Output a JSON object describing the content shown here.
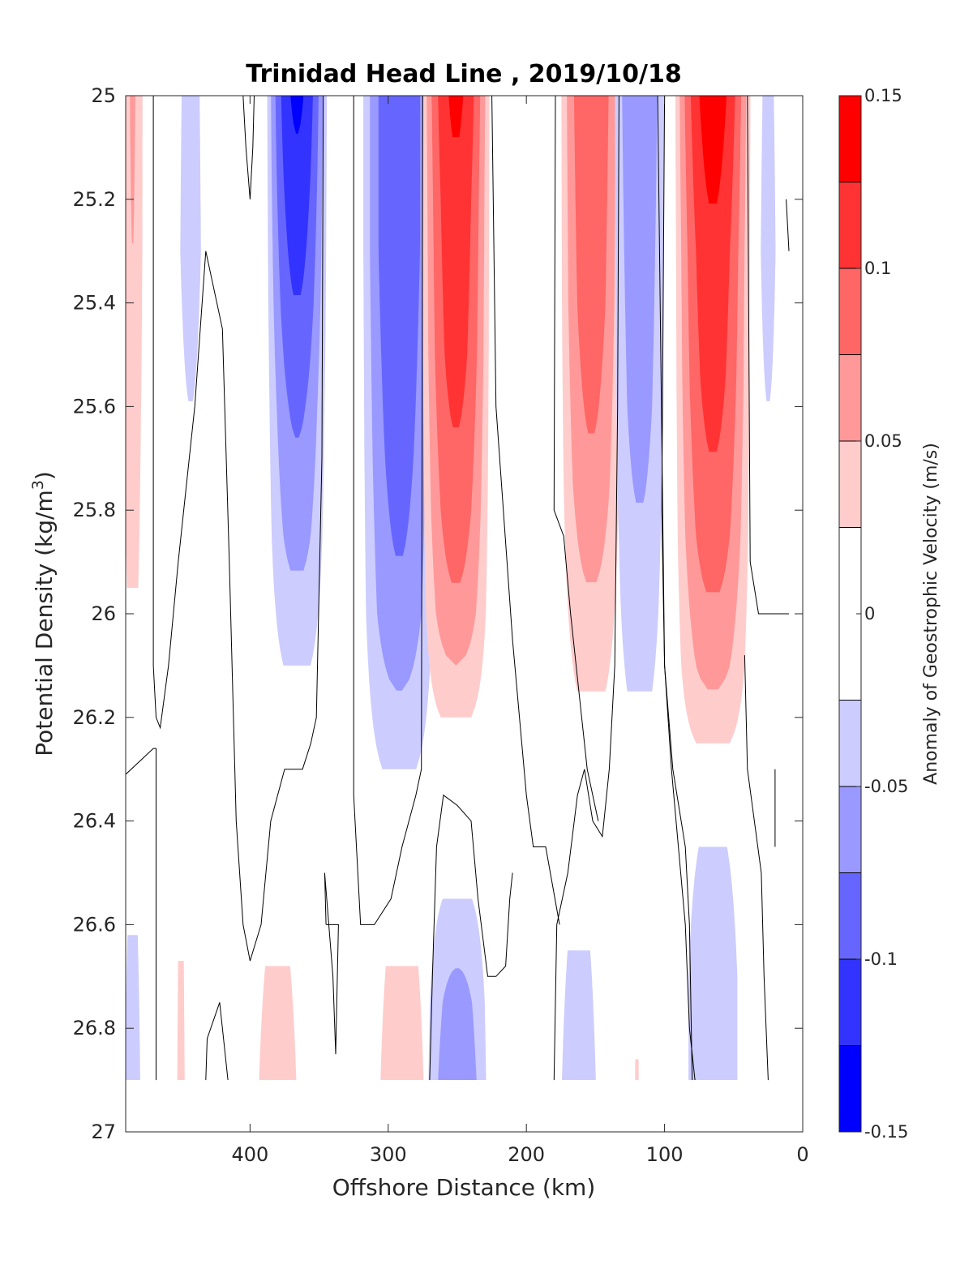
{
  "chart_data": {
    "type": "contour",
    "title": "Trinidad Head Line , 2019/10/18",
    "xlabel": "Offshore Distance (km)",
    "ylabel_main": "Potential Density (kg/m",
    "ylabel_sup": "3",
    "ylabel_close": ")",
    "colorbar_label": "Anomaly of Geostrophic Velocity (m/s)",
    "xlim": [
      490,
      0
    ],
    "ylim": [
      25,
      27
    ],
    "x_ticks": [
      400,
      300,
      200,
      100,
      0
    ],
    "x_tick_labels": [
      "400",
      "300",
      "200",
      "100",
      "0"
    ],
    "y_ticks": [
      25,
      25.2,
      25.4,
      25.6,
      25.8,
      26,
      26.2,
      26.4,
      26.6,
      26.8,
      27
    ],
    "y_tick_labels": [
      "25",
      "25.2",
      "25.4",
      "25.6",
      "25.8",
      "26",
      "26.2",
      "26.4",
      "26.6",
      "26.8",
      "27"
    ],
    "data_bottom_density": 26.9,
    "colorbar": {
      "range": [
        -0.15,
        0.15
      ],
      "levels": [
        -0.15,
        -0.125,
        -0.1,
        -0.075,
        -0.05,
        -0.025,
        0.025,
        0.05,
        0.075,
        0.1,
        0.125,
        0.15
      ],
      "colors": [
        "#0000ff",
        "#3333ff",
        "#6666ff",
        "#9999ff",
        "#ccccff",
        "#ffffff",
        "#ffcccc",
        "#ff9999",
        "#ff6666",
        "#ff3333",
        "#ff0000"
      ],
      "tick_values": [
        0.15,
        0.1,
        0.05,
        0,
        -0.05,
        -0.1,
        -0.15
      ],
      "tick_labels": [
        "0.15",
        "0.1",
        "0.05",
        "0",
        "-0.05",
        "-0.1",
        "-0.15"
      ]
    },
    "features": [
      {
        "name": "offshore-red-edge",
        "sign": "positive",
        "x_center": 485,
        "half_width": 10,
        "rows": [
          [
            25.0,
            0.052
          ],
          [
            25.3,
            0.05
          ],
          [
            25.6,
            0.04
          ],
          [
            25.95,
            0.03
          ]
        ]
      },
      {
        "name": "offshore-blue-upper",
        "sign": "negative",
        "x_center": 443,
        "half_width": 16,
        "rows": [
          [
            25.0,
            -0.03
          ],
          [
            25.3,
            -0.032
          ],
          [
            25.6,
            -0.025
          ]
        ]
      },
      {
        "name": "jet-blue-370",
        "sign": "negative",
        "x_center": 366,
        "half_width": 24,
        "rows": [
          [
            25.0,
            -0.13
          ],
          [
            25.15,
            -0.12
          ],
          [
            25.4,
            -0.1
          ],
          [
            25.6,
            -0.08
          ],
          [
            25.85,
            -0.06
          ],
          [
            26.1,
            -0.03
          ]
        ]
      },
      {
        "name": "jet-blue-290",
        "sign": "negative",
        "x_center": 292,
        "half_width": 30,
        "rows": [
          [
            25.0,
            -0.1
          ],
          [
            25.3,
            -0.1
          ],
          [
            25.7,
            -0.085
          ],
          [
            26.0,
            -0.07
          ],
          [
            26.3,
            -0.03
          ]
        ]
      },
      {
        "name": "jet-red-250",
        "sign": "positive",
        "x_center": 251,
        "half_width": 27,
        "rows": [
          [
            25.0,
            0.13
          ],
          [
            25.2,
            0.12
          ],
          [
            25.5,
            0.11
          ],
          [
            25.8,
            0.09
          ],
          [
            26.0,
            0.07
          ],
          [
            26.2,
            0.03
          ]
        ]
      },
      {
        "name": "jet-red-155",
        "sign": "positive",
        "x_center": 153,
        "half_width": 25,
        "rows": [
          [
            25.0,
            0.1
          ],
          [
            25.4,
            0.09
          ],
          [
            25.75,
            0.07
          ],
          [
            26.15,
            0.03
          ]
        ]
      },
      {
        "name": "jet-blue-118",
        "sign": "negative",
        "x_center": 118,
        "half_width": 22,
        "rows": [
          [
            25.0,
            -0.075
          ],
          [
            25.6,
            -0.06
          ],
          [
            26.0,
            -0.04
          ],
          [
            26.15,
            -0.03
          ]
        ]
      },
      {
        "name": "jet-red-65",
        "sign": "positive",
        "x_center": 65,
        "half_width": 30,
        "rows": [
          [
            25.0,
            0.14
          ],
          [
            25.3,
            0.12
          ],
          [
            25.55,
            0.11
          ],
          [
            25.85,
            0.09
          ],
          [
            26.1,
            0.06
          ],
          [
            26.25,
            0.03
          ]
        ]
      },
      {
        "name": "inshore-blue",
        "sign": "negative",
        "x_center": 25,
        "half_width": 10,
        "rows": [
          [
            25.0,
            -0.03
          ],
          [
            25.3,
            -0.035
          ],
          [
            25.6,
            -0.025
          ]
        ]
      },
      {
        "name": "deep-blue-offshore",
        "sign": "negative",
        "x_center": 485,
        "half_width": 9,
        "rows": [
          [
            26.62,
            -0.03
          ],
          [
            26.9,
            -0.04
          ]
        ]
      },
      {
        "name": "deep-red-450",
        "sign": "positive",
        "x_center": 450,
        "half_width": 5,
        "rows": [
          [
            26.67,
            0.03
          ],
          [
            26.9,
            0.035
          ]
        ]
      },
      {
        "name": "deep-red-380",
        "sign": "positive",
        "x_center": 380,
        "half_width": 22,
        "rows": [
          [
            26.68,
            0.03
          ],
          [
            26.9,
            0.04
          ]
        ]
      },
      {
        "name": "deep-red-290",
        "sign": "positive",
        "x_center": 290,
        "half_width": 22,
        "rows": [
          [
            26.68,
            0.035
          ],
          [
            26.9,
            0.05
          ]
        ]
      },
      {
        "name": "deep-blue-250",
        "sign": "negative",
        "x_center": 250,
        "half_width": 26,
        "rows": [
          [
            26.55,
            -0.03
          ],
          [
            26.75,
            -0.06
          ],
          [
            26.9,
            -0.07
          ]
        ]
      },
      {
        "name": "deep-blue-160",
        "sign": "negative",
        "x_center": 162,
        "half_width": 20,
        "rows": [
          [
            26.65,
            -0.03
          ],
          [
            26.9,
            -0.04
          ]
        ]
      },
      {
        "name": "deep-red-120",
        "sign": "positive",
        "x_center": 120,
        "half_width": 3,
        "rows": [
          [
            26.86,
            0.03
          ],
          [
            26.9,
            0.03
          ]
        ]
      },
      {
        "name": "deep-blue-65",
        "sign": "negative",
        "x_center": 65,
        "half_width": 25,
        "rows": [
          [
            26.45,
            -0.03
          ],
          [
            26.7,
            -0.05
          ],
          [
            26.9,
            -0.05
          ]
        ]
      }
    ],
    "zero_contours": [
      {
        "name": "zc-1",
        "points": [
          [
            470,
            25.0
          ],
          [
            470,
            26.1
          ],
          [
            468,
            26.2
          ],
          [
            465,
            26.22
          ],
          [
            459,
            26.1
          ],
          [
            452,
            25.9
          ],
          [
            440,
            25.6
          ],
          [
            432,
            25.3
          ],
          [
            420,
            25.45
          ],
          [
            415,
            25.9
          ],
          [
            410,
            26.4
          ],
          [
            405,
            26.6
          ],
          [
            400,
            26.67
          ],
          [
            392,
            26.6
          ],
          [
            385,
            26.4
          ],
          [
            375,
            26.3
          ],
          [
            362,
            26.3
          ],
          [
            356,
            26.25
          ],
          [
            352,
            26.2
          ],
          [
            348,
            25.7
          ],
          [
            347,
            25.0
          ]
        ]
      },
      {
        "name": "zc-2",
        "points": [
          [
            490,
            26.31
          ],
          [
            470,
            26.26
          ],
          [
            468,
            26.26
          ],
          [
            468,
            26.9
          ]
        ]
      },
      {
        "name": "zc-3",
        "points": [
          [
            432,
            26.9
          ],
          [
            431,
            26.82
          ],
          [
            422,
            26.75
          ],
          [
            416,
            26.9
          ]
        ]
      },
      {
        "name": "zc-4",
        "points": [
          [
            405,
            25.0
          ],
          [
            403,
            25.1
          ],
          [
            400,
            25.2
          ],
          [
            398,
            25.1
          ],
          [
            397,
            25.0
          ]
        ]
      },
      {
        "name": "zc-5",
        "points": [
          [
            345,
            26.6
          ],
          [
            346,
            26.5
          ],
          [
            340,
            26.7
          ],
          [
            338,
            26.85
          ],
          [
            336,
            26.6
          ],
          [
            345,
            26.6
          ]
        ]
      },
      {
        "name": "zc-6",
        "points": [
          [
            325,
            25.0
          ],
          [
            325,
            26.35
          ],
          [
            320,
            26.6
          ],
          [
            310,
            26.6
          ],
          [
            298,
            26.55
          ],
          [
            290,
            26.45
          ],
          [
            280,
            26.35
          ],
          [
            276,
            26.3
          ],
          [
            275,
            25.0
          ]
        ]
      },
      {
        "name": "zc-7",
        "points": [
          [
            270,
            26.9
          ],
          [
            268,
            26.7
          ],
          [
            265,
            26.45
          ],
          [
            260,
            26.35
          ],
          [
            250,
            26.37
          ],
          [
            240,
            26.4
          ],
          [
            235,
            26.55
          ],
          [
            228,
            26.7
          ],
          [
            222,
            26.7
          ],
          [
            215,
            26.68
          ],
          [
            212,
            26.55
          ],
          [
            210,
            26.5
          ]
        ]
      },
      {
        "name": "zc-8",
        "points": [
          [
            180,
            26.9
          ],
          [
            178,
            26.6
          ],
          [
            170,
            26.5
          ],
          [
            163,
            26.35
          ],
          [
            158,
            26.3
          ],
          [
            152,
            26.4
          ],
          [
            145,
            26.43
          ],
          [
            140,
            26.3
          ],
          [
            136,
            26.1
          ],
          [
            134,
            25.6
          ],
          [
            133,
            25.0
          ]
        ]
      },
      {
        "name": "zc-9",
        "points": [
          [
            225,
            25.0
          ],
          [
            222,
            25.6
          ],
          [
            210,
            26.05
          ],
          [
            200,
            26.35
          ],
          [
            195,
            26.45
          ],
          [
            186,
            26.45
          ],
          [
            176,
            26.6
          ]
        ]
      },
      {
        "name": "zc-10",
        "points": [
          [
            179,
            25.0
          ],
          [
            180,
            25.8
          ],
          [
            173,
            25.85
          ],
          [
            168,
            26.0
          ],
          [
            156,
            26.3
          ],
          [
            148,
            26.4
          ]
        ]
      },
      {
        "name": "zc-11",
        "points": [
          [
            100,
            25.0
          ],
          [
            102,
            25.8
          ],
          [
            100,
            26.1
          ],
          [
            95,
            26.3
          ],
          [
            85,
            26.6
          ],
          [
            82,
            26.8
          ],
          [
            78,
            26.9
          ]
        ]
      },
      {
        "name": "zc-12",
        "points": [
          [
            80,
            26.9
          ],
          [
            82,
            26.6
          ],
          [
            85,
            26.45
          ],
          [
            94,
            26.3
          ],
          [
            100,
            26.1
          ],
          [
            105,
            25.0
          ]
        ]
      },
      {
        "name": "zc-13",
        "points": [
          [
            40,
            25.0
          ],
          [
            38,
            25.9
          ],
          [
            32,
            26.0
          ],
          [
            20,
            26.0
          ],
          [
            10,
            26.0
          ]
        ]
      },
      {
        "name": "zc-14",
        "points": [
          [
            42,
            26.08
          ],
          [
            40,
            26.3
          ],
          [
            30,
            26.5
          ],
          [
            28,
            26.7
          ],
          [
            25,
            26.9
          ]
        ]
      },
      {
        "name": "zc-15",
        "points": [
          [
            12,
            25.2
          ],
          [
            10,
            25.3
          ]
        ]
      },
      {
        "name": "zc-16",
        "points": [
          [
            20,
            26.3
          ],
          [
            20,
            26.45
          ]
        ]
      }
    ]
  }
}
